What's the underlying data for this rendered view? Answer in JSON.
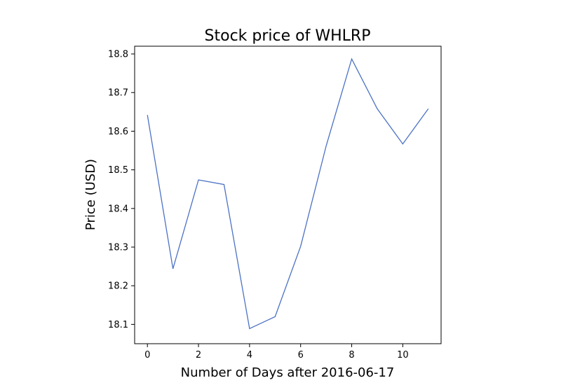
{
  "chart_data": {
    "type": "line",
    "title": "Stock price of WHLRP",
    "xlabel": "Number of Days after 2016-06-17",
    "ylabel": "Price (USD)",
    "x": [
      0,
      1,
      2,
      3,
      4,
      5,
      6,
      7,
      8,
      9,
      10,
      11
    ],
    "series": [
      {
        "values": [
          18.642,
          18.244,
          18.474,
          18.462,
          18.089,
          18.12,
          18.302,
          18.562,
          18.787,
          18.658,
          18.567,
          18.658
        ],
        "color": "#4c72c4"
      }
    ],
    "xlim": [
      -0.5,
      11.5
    ],
    "ylim": [
      18.05,
      18.82
    ],
    "xticks": [
      0,
      2,
      4,
      6,
      8,
      10
    ],
    "xtick_labels": [
      "0",
      "2",
      "4",
      "6",
      "8",
      "10"
    ],
    "yticks": [
      18.1,
      18.2,
      18.3,
      18.4,
      18.5,
      18.6,
      18.7,
      18.8
    ],
    "ytick_labels": [
      "18.1",
      "18.2",
      "18.3",
      "18.4",
      "18.5",
      "18.6",
      "18.7",
      "18.8"
    ],
    "grid": false,
    "legend": "none"
  }
}
